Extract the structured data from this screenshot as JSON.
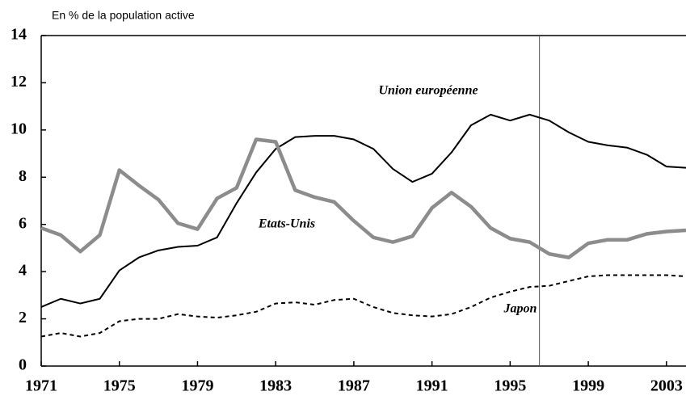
{
  "chart_data": {
    "type": "line",
    "y_label": "En % de la population active",
    "x": [
      1971,
      1972,
      1973,
      1974,
      1975,
      1976,
      1977,
      1978,
      1979,
      1980,
      1981,
      1982,
      1983,
      1984,
      1985,
      1986,
      1987,
      1988,
      1989,
      1990,
      1991,
      1992,
      1993,
      1994,
      1995,
      1996,
      1997,
      1998,
      1999,
      2000,
      2001,
      2002,
      2003,
      2004
    ],
    "series": [
      {
        "name": "Union européenne",
        "color": "#000000",
        "style": "solid",
        "values": [
          2.5,
          2.85,
          2.65,
          2.85,
          4.05,
          4.6,
          4.9,
          5.05,
          5.1,
          5.45,
          6.9,
          8.2,
          9.2,
          9.7,
          9.75,
          9.75,
          9.6,
          9.2,
          8.35,
          7.8,
          8.15,
          9.05,
          10.2,
          10.65,
          10.4,
          10.65,
          10.4,
          9.9,
          9.5,
          9.35,
          9.25,
          8.95,
          8.45,
          8.4
        ]
      },
      {
        "name": "Etats-Unis",
        "color": "#8c8c8c",
        "style": "thick",
        "values": [
          5.85,
          5.55,
          4.85,
          5.55,
          8.3,
          7.65,
          7.05,
          6.05,
          5.8,
          7.1,
          7.55,
          9.6,
          9.5,
          7.45,
          7.15,
          6.95,
          6.15,
          5.45,
          5.25,
          5.5,
          6.7,
          7.35,
          6.75,
          5.85,
          5.4,
          5.25,
          4.75,
          4.6,
          5.2,
          5.35,
          5.35,
          5.6,
          5.7,
          5.75
        ]
      },
      {
        "name": "Japon",
        "color": "#000000",
        "style": "dashed",
        "values": [
          1.25,
          1.4,
          1.25,
          1.4,
          1.9,
          2.0,
          2.0,
          2.2,
          2.1,
          2.05,
          2.15,
          2.3,
          2.65,
          2.7,
          2.6,
          2.8,
          2.85,
          2.5,
          2.25,
          2.15,
          2.1,
          2.2,
          2.5,
          2.9,
          3.15,
          3.35,
          3.4,
          3.6,
          3.8,
          3.85,
          3.85,
          3.85,
          3.85,
          3.8
        ]
      }
    ],
    "xlim": [
      1971,
      2004
    ],
    "xticks": [
      1971,
      1975,
      1979,
      1983,
      1987,
      1991,
      1995,
      1999,
      2003
    ],
    "ylim": [
      0,
      14
    ],
    "yticks": [
      0,
      2,
      4,
      6,
      8,
      10,
      12,
      14
    ],
    "vline": 1996.5,
    "grid": false
  }
}
